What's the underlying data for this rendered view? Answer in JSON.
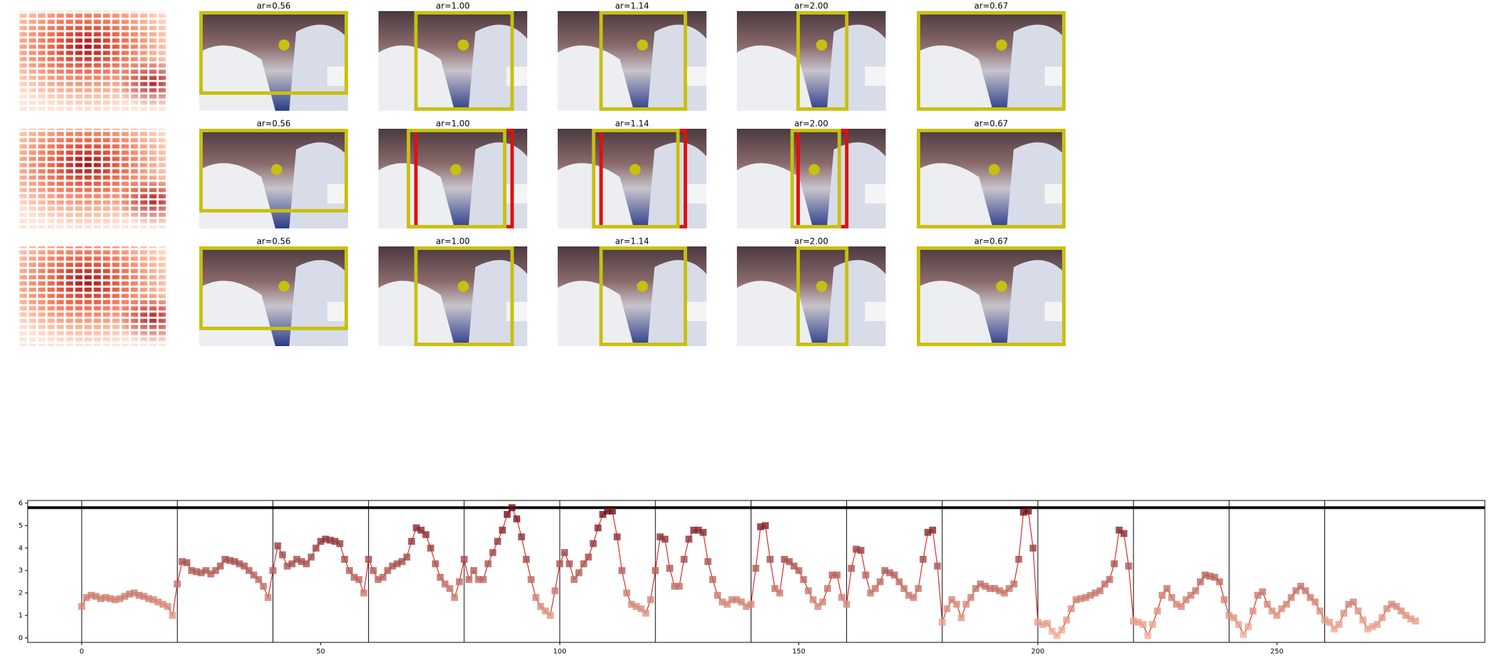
{
  "panels": [
    {
      "titles": [
        "ar=0.56",
        "ar=1.00",
        "ar=1.14",
        "ar=2.00",
        "ar=0.67"
      ]
    },
    {
      "titles": [
        "ar=0.56",
        "ar=1.00",
        "ar=1.14",
        "ar=2.00",
        "ar=0.67"
      ]
    },
    {
      "titles": [
        "ar=0.56",
        "ar=1.00",
        "ar=1.14",
        "ar=2.00",
        "ar=0.67"
      ]
    }
  ],
  "chart_data": {
    "type": "line",
    "color": "#d62728",
    "xlim": [
      -11.3,
      293.5
    ],
    "ylim": [
      -0.2,
      6.12
    ],
    "xticks": [
      0,
      50,
      100,
      150,
      200,
      250
    ],
    "yticks": [
      0,
      1,
      2,
      3,
      4,
      5,
      6
    ],
    "vlines": [
      0,
      20,
      40,
      60,
      80,
      100,
      120,
      140,
      160,
      180,
      200,
      220,
      240,
      260
    ],
    "hline": 5.8,
    "x": [
      0,
      1,
      2,
      3,
      4,
      5,
      6,
      7,
      8,
      9,
      10,
      11,
      12,
      13,
      14,
      15,
      16,
      17,
      18,
      19,
      20,
      21,
      22,
      23,
      24,
      25,
      26,
      27,
      28,
      29,
      30,
      31,
      32,
      33,
      34,
      35,
      36,
      37,
      38,
      39,
      40,
      41,
      42,
      43,
      44,
      45,
      46,
      47,
      48,
      49,
      50,
      51,
      52,
      53,
      54,
      55,
      56,
      57,
      58,
      59,
      60,
      61,
      62,
      63,
      64,
      65,
      66,
      67,
      68,
      69,
      70,
      71,
      72,
      73,
      74,
      75,
      76,
      77,
      78,
      79,
      80,
      81,
      82,
      83,
      84,
      85,
      86,
      87,
      88,
      89,
      90,
      91,
      92,
      93,
      94,
      95,
      96,
      97,
      98,
      99,
      100,
      101,
      102,
      103,
      104,
      105,
      106,
      107,
      108,
      109,
      110,
      111,
      112,
      113,
      114,
      115,
      116,
      117,
      118,
      119,
      120,
      121,
      122,
      123,
      124,
      125,
      126,
      127,
      128,
      129,
      130,
      131,
      132,
      133,
      134,
      135,
      136,
      137,
      138,
      139,
      140,
      141,
      142,
      143,
      144,
      145,
      146,
      147,
      148,
      149,
      150,
      151,
      152,
      153,
      154,
      155,
      156,
      157,
      158,
      159,
      160,
      161,
      162,
      163,
      164,
      165,
      166,
      167,
      168,
      169,
      170,
      171,
      172,
      173,
      174,
      175,
      176,
      177,
      178,
      179,
      180,
      181,
      182,
      183,
      184,
      185,
      186,
      187,
      188,
      189,
      190,
      191,
      192,
      193,
      194,
      195,
      196,
      197,
      198,
      199,
      200,
      201,
      202,
      203,
      204,
      205,
      206,
      207,
      208,
      209,
      210,
      211,
      212,
      213,
      214,
      215,
      216,
      217,
      218,
      219,
      220,
      221,
      222,
      223,
      224,
      225,
      226,
      227,
      228,
      229,
      230,
      231,
      232,
      233,
      234,
      235,
      236,
      237,
      238,
      239,
      240,
      241,
      242,
      243,
      244,
      245,
      246,
      247,
      248,
      249,
      250,
      251,
      252,
      253,
      254,
      255,
      256,
      257,
      258,
      259,
      260,
      261,
      262,
      263,
      264,
      265,
      266,
      267,
      268,
      269,
      270,
      271,
      272,
      273,
      274,
      275,
      276,
      277,
      278,
      279
    ],
    "values": [
      1.4,
      1.8,
      1.9,
      1.85,
      1.75,
      1.8,
      1.75,
      1.7,
      1.75,
      1.85,
      1.95,
      2.0,
      1.9,
      1.85,
      1.75,
      1.7,
      1.6,
      1.5,
      1.4,
      1.0,
      2.4,
      3.4,
      3.35,
      3.0,
      2.95,
      2.9,
      3.0,
      2.85,
      3.0,
      3.2,
      3.5,
      3.45,
      3.4,
      3.3,
      3.2,
      3.0,
      2.8,
      2.6,
      2.3,
      1.8,
      3.0,
      4.1,
      3.7,
      3.2,
      3.3,
      3.5,
      3.4,
      3.3,
      3.6,
      4.0,
      4.3,
      4.4,
      4.35,
      4.3,
      4.2,
      3.5,
      3.0,
      2.7,
      2.6,
      2.0,
      3.5,
      3.0,
      2.6,
      2.7,
      3.0,
      3.2,
      3.3,
      3.4,
      3.6,
      4.3,
      4.9,
      4.8,
      4.6,
      4.0,
      3.3,
      2.7,
      2.4,
      2.2,
      1.8,
      2.5,
      3.5,
      2.6,
      3.0,
      2.6,
      2.6,
      3.3,
      3.8,
      4.3,
      4.8,
      5.5,
      5.8,
      5.3,
      4.5,
      3.5,
      2.6,
      1.8,
      1.4,
      1.2,
      1.0,
      2.1,
      3.3,
      3.8,
      3.3,
      2.6,
      2.9,
      3.3,
      3.6,
      4.2,
      4.9,
      5.5,
      5.65,
      5.65,
      4.5,
      3.0,
      2.0,
      1.5,
      1.4,
      1.3,
      1.1,
      1.7,
      3.0,
      4.5,
      4.4,
      3.1,
      2.3,
      2.3,
      3.5,
      4.4,
      4.8,
      4.8,
      4.7,
      3.4,
      2.6,
      1.9,
      1.6,
      1.5,
      1.7,
      1.7,
      1.6,
      1.4,
      1.5,
      3.1,
      4.95,
      5.0,
      3.5,
      2.2,
      2.0,
      3.5,
      3.4,
      3.2,
      3.0,
      2.6,
      2.1,
      1.7,
      1.4,
      1.6,
      2.2,
      2.8,
      2.8,
      1.8,
      1.5,
      3.1,
      3.95,
      3.9,
      2.8,
      2.0,
      2.2,
      2.5,
      3.0,
      2.9,
      2.8,
      2.5,
      2.2,
      1.9,
      1.8,
      2.2,
      3.5,
      4.7,
      4.8,
      3.2,
      0.7,
      1.3,
      1.7,
      1.5,
      0.9,
      1.5,
      1.8,
      2.2,
      2.4,
      2.3,
      2.2,
      2.2,
      2.1,
      2.0,
      2.2,
      2.4,
      3.5,
      5.6,
      5.65,
      4.0,
      0.7,
      0.6,
      0.65,
      0.3,
      0.1,
      0.35,
      0.8,
      1.3,
      1.7,
      1.75,
      1.8,
      1.9,
      2.0,
      2.1,
      2.4,
      2.6,
      3.3,
      4.8,
      4.65,
      3.2,
      0.75,
      0.7,
      0.6,
      0.1,
      0.6,
      1.2,
      1.9,
      2.2,
      1.8,
      1.5,
      1.4,
      1.7,
      1.9,
      2.1,
      2.5,
      2.8,
      2.75,
      2.7,
      2.5,
      1.7,
      1.0,
      0.9,
      0.6,
      0.15,
      0.5,
      1.2,
      1.9,
      2.05,
      1.5,
      1.2,
      1.0,
      1.3,
      1.5,
      1.8,
      2.1,
      2.3,
      2.1,
      1.8,
      1.6,
      1.2,
      0.8,
      0.7,
      0.4,
      0.6,
      1.1,
      1.5,
      1.6,
      1.2,
      0.8,
      0.4,
      0.5,
      0.6,
      0.9,
      1.3,
      1.5,
      1.4,
      1.2,
      1.0,
      0.85,
      0.75
    ]
  }
}
